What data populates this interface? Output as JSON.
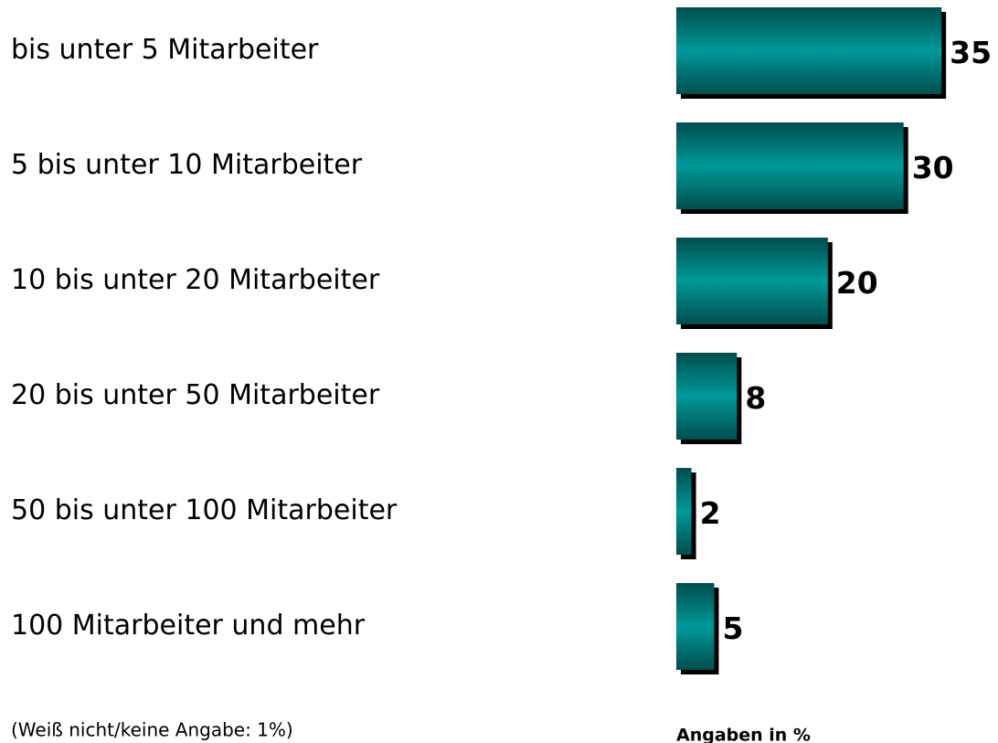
{
  "chart_data": {
    "type": "bar",
    "orientation": "horizontal",
    "categories": [
      "bis unter 5 Mitarbeiter",
      "5 bis unter 10 Mitarbeiter",
      "10 bis unter 20 Mitarbeiter",
      "20 bis unter 50 Mitarbeiter",
      "50 bis unter 100 Mitarbeiter",
      "100 Mitarbeiter und mehr"
    ],
    "values": [
      35,
      30,
      20,
      8,
      2,
      5
    ],
    "color": "#009999",
    "note": "(Weiß nicht/keine Angabe: 1%)",
    "value_axis_label": "Angaben in %"
  }
}
